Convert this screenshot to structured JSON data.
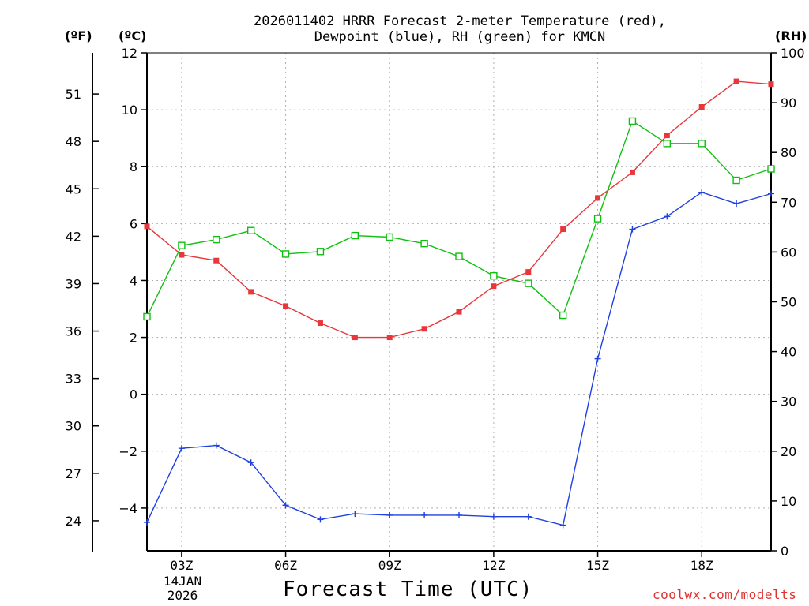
{
  "title": {
    "line1": "2026011402 HRRR Forecast 2-meter Temperature (red),",
    "line2": "Dewpoint (blue), RH (green) for KMCN"
  },
  "units": {
    "fahrenheit": "(ºF)",
    "celsius": "(ºC)",
    "rh": "(RH)"
  },
  "x_axis_title": "Forecast Time (UTC)",
  "start_date": {
    "line1": "14JAN",
    "line2": "2026"
  },
  "credit": "coolwx.com/modelts",
  "colors": {
    "temperature": "#e8363a",
    "dewpoint": "#2040e0",
    "rh": "#10c010",
    "grid": "#b0b0b0"
  },
  "chart_data": {
    "type": "line",
    "title": "2026011402 HRRR Forecast 2-meter Temperature (red), Dewpoint (blue), RH (green) for KMCN",
    "xlabel": "Forecast Time (UTC)",
    "x": [
      "02Z",
      "03Z",
      "04Z",
      "05Z",
      "06Z",
      "07Z",
      "08Z",
      "09Z",
      "10Z",
      "11Z",
      "12Z",
      "13Z",
      "14Z",
      "15Z",
      "16Z",
      "17Z",
      "18Z",
      "19Z",
      "20Z"
    ],
    "x_ticks": [
      "03Z",
      "06Z",
      "09Z",
      "12Z",
      "15Z",
      "18Z"
    ],
    "xlim_hours": [
      2,
      20
    ],
    "y_celsius": {
      "label": "(ºC)",
      "ylim": [
        -5.5,
        12
      ],
      "ticks": [
        12,
        10,
        8,
        6,
        4,
        2,
        0,
        -2,
        -4
      ]
    },
    "y_fahrenheit": {
      "label": "(ºF)",
      "ticks": [
        51,
        48,
        45,
        42,
        39,
        36,
        33,
        30,
        27,
        24
      ]
    },
    "y_rh": {
      "label": "(RH)",
      "ylim": [
        0,
        100
      ],
      "ticks": [
        100,
        90,
        80,
        70,
        60,
        50,
        40,
        30,
        20,
        10,
        0
      ]
    },
    "grid": true,
    "series": [
      {
        "name": "Temperature",
        "axis": "celsius",
        "color": "#e8363a",
        "marker": "filled-square",
        "values": [
          5.9,
          4.9,
          4.7,
          3.6,
          3.1,
          2.5,
          2.0,
          2.0,
          2.3,
          2.9,
          3.8,
          4.3,
          5.8,
          6.9,
          7.8,
          9.1,
          10.1,
          11.0,
          10.9
        ]
      },
      {
        "name": "Dewpoint",
        "axis": "celsius",
        "color": "#2040e0",
        "marker": "plus",
        "values": [
          -4.5,
          -1.9,
          -1.8,
          -2.4,
          -3.9,
          -4.4,
          -4.2,
          -4.25,
          -4.25,
          -4.25,
          -4.3,
          -4.3,
          -4.6,
          1.25,
          5.8,
          6.25,
          7.1,
          6.7,
          7.05
        ]
      },
      {
        "name": "RH",
        "axis": "rh",
        "color": "#10c010",
        "marker": "open-square",
        "values": [
          47,
          61.3,
          62.5,
          64.3,
          59.6,
          60.1,
          63.3,
          63,
          61.7,
          59.1,
          55.2,
          53.7,
          47.3,
          66.7,
          86.3,
          81.8,
          81.8,
          74.4,
          76.7
        ]
      }
    ]
  }
}
